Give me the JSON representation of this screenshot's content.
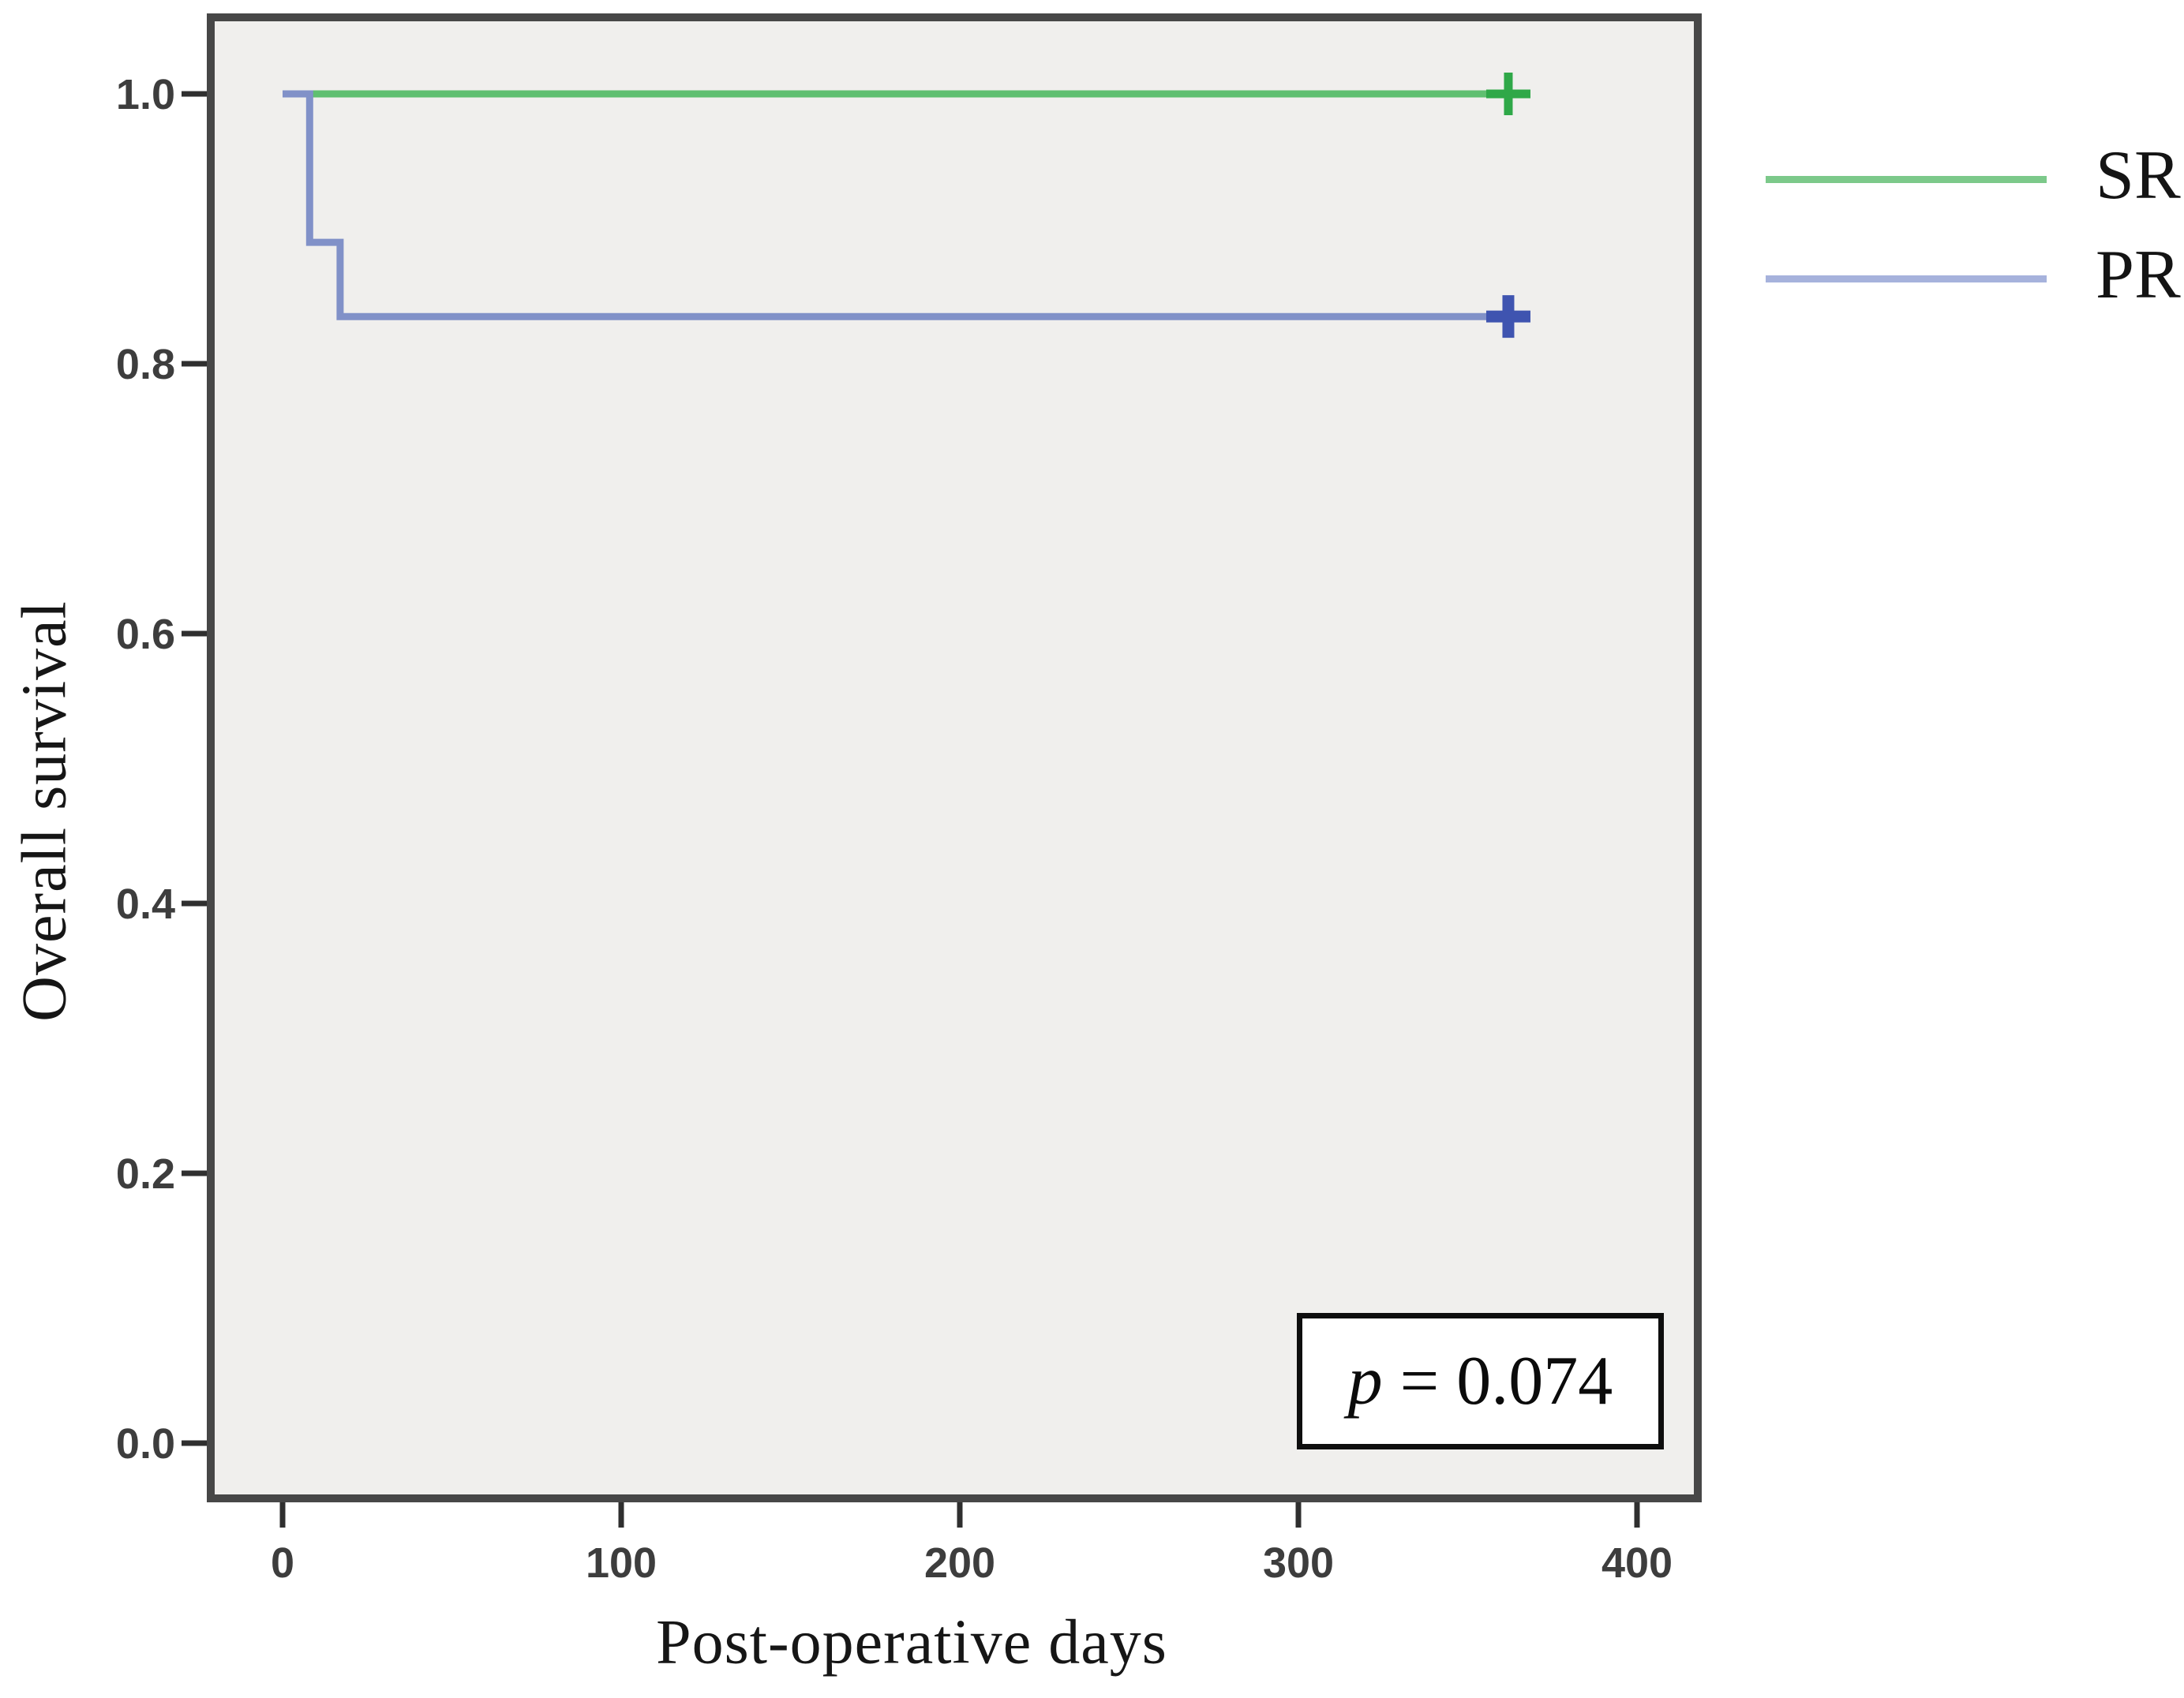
{
  "figure": {
    "x_axis": {
      "title": "Post-operative days",
      "ticks": [
        {
          "label": "0",
          "value": 0
        },
        {
          "label": "100",
          "value": 100
        },
        {
          "label": "200",
          "value": 200
        },
        {
          "label": "300",
          "value": 300
        },
        {
          "label": "400",
          "value": 400
        }
      ]
    },
    "y_axis": {
      "title": "Overall survival",
      "ticks": [
        {
          "label": "1.0",
          "value": 1.0
        },
        {
          "label": "0.8",
          "value": 0.8
        },
        {
          "label": "0.6",
          "value": 0.6
        },
        {
          "label": "0.4",
          "value": 0.4
        },
        {
          "label": "0.2",
          "value": 0.2
        },
        {
          "label": "0.0",
          "value": 0.0
        }
      ]
    },
    "legend": {
      "items": [
        {
          "id": "sr",
          "label": "SR",
          "color": "#7cc98a"
        },
        {
          "id": "pr",
          "label": "PR",
          "color": "#a6b2dc"
        }
      ]
    },
    "stat_box": {
      "symbol": "p",
      "text": "= 0.074"
    }
  },
  "chart_data": {
    "type": "line",
    "subtype": "kaplan_meier_step",
    "title": "",
    "xlabel": "Post-operative days",
    "ylabel": "Overall survival",
    "xlim": [
      -21,
      419
    ],
    "ylim": [
      -0.04,
      1.06
    ],
    "x_ticks": [
      0,
      100,
      200,
      300,
      400
    ],
    "y_ticks": [
      0.0,
      0.2,
      0.4,
      0.6,
      0.8,
      1.0
    ],
    "grid": false,
    "legend_position": "outside-top-right",
    "plot_background": "#f0efed",
    "plot_border_color": "#474747",
    "tick_color": "#2f2f2f",
    "tick_label_color": "#3d3d3d",
    "annotation": "p = 0.074",
    "series": [
      {
        "name": "SR",
        "color": "#5fbf70",
        "censor_color": "#2fa848",
        "line_width": 9,
        "censor_width": 11,
        "points": [
          [
            0,
            1.0
          ],
          [
            367,
            1.0
          ]
        ],
        "censors": [
          [
            362,
            1.0
          ]
        ]
      },
      {
        "name": "PR",
        "color": "#8191c8",
        "censor_color": "#3f54b0",
        "line_width": 9,
        "censor_width": 15,
        "points": [
          [
            0,
            1.0
          ],
          [
            8,
            1.0
          ],
          [
            8,
            0.89
          ],
          [
            17,
            0.89
          ],
          [
            17,
            0.835
          ],
          [
            367,
            0.835
          ]
        ],
        "censors": [
          [
            362,
            0.835
          ]
        ]
      }
    ]
  }
}
